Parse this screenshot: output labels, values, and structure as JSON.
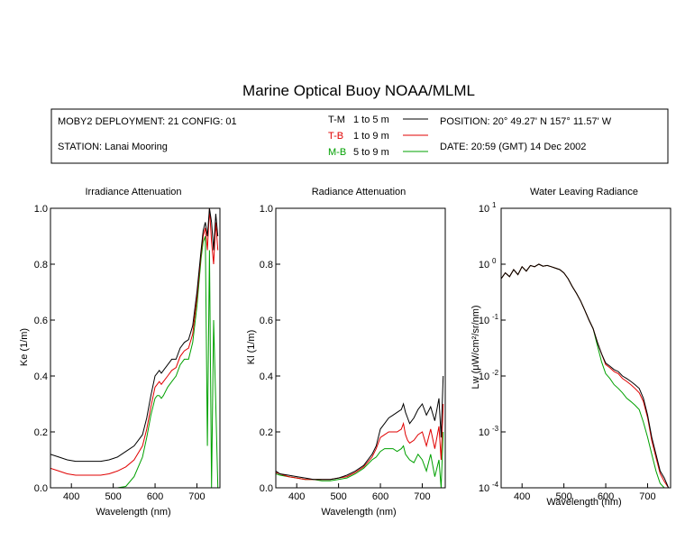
{
  "title": "Marine Optical Buoy NOAA/MLML",
  "info": {
    "deployment": "MOBY2 DEPLOYMENT: 21 CONFIG: 01",
    "station": "STATION: Lanai Mooring",
    "position": "POSITION: 20° 49.27' N   157° 11.57' W",
    "date": "DATE: 20:59 (GMT) 14 Dec 2002",
    "legend": [
      {
        "label": "T-M",
        "range": "1 to 5  m",
        "color": "#000000"
      },
      {
        "label": "T-B",
        "range": "1 to 9  m",
        "color": "#e00000"
      },
      {
        "label": "M-B",
        "range": "5 to 9  m",
        "color": "#00a000"
      }
    ]
  },
  "colors": {
    "T-M": "#000000",
    "T-B": "#e00000",
    "M-B": "#00a000"
  },
  "chart_data": [
    {
      "type": "line",
      "title": "Irradiance Attenuation",
      "xlabel": "Wavelength (nm)",
      "ylabel": "Ke  (1/m)",
      "xlim": [
        350,
        755
      ],
      "ylim": [
        0,
        1.0
      ],
      "xticks": [
        400,
        500,
        600,
        700
      ],
      "yticks": [
        0.0,
        0.2,
        0.4,
        0.6,
        0.8,
        1.0
      ],
      "ytick_labels": [
        "0.0",
        "0.2",
        "0.4",
        "0.6",
        "0.8",
        "1.0"
      ],
      "series": [
        {
          "name": "T-M",
          "x": [
            350,
            370,
            390,
            410,
            430,
            450,
            470,
            490,
            510,
            530,
            550,
            570,
            580,
            590,
            600,
            605,
            610,
            615,
            620,
            630,
            640,
            650,
            660,
            670,
            680,
            690,
            700,
            710,
            715,
            720,
            725,
            730,
            735,
            740,
            745,
            750
          ],
          "y": [
            0.12,
            0.11,
            0.1,
            0.095,
            0.095,
            0.095,
            0.095,
            0.1,
            0.11,
            0.13,
            0.15,
            0.19,
            0.25,
            0.33,
            0.4,
            0.41,
            0.42,
            0.41,
            0.42,
            0.44,
            0.46,
            0.46,
            0.5,
            0.52,
            0.53,
            0.58,
            0.7,
            0.85,
            0.92,
            0.95,
            0.9,
            1.0,
            0.95,
            0.85,
            0.98,
            0.9
          ]
        },
        {
          "name": "T-B",
          "x": [
            350,
            370,
            390,
            410,
            430,
            450,
            470,
            490,
            510,
            530,
            550,
            570,
            580,
            590,
            600,
            605,
            610,
            615,
            620,
            630,
            640,
            650,
            660,
            670,
            680,
            690,
            700,
            710,
            715,
            720,
            725,
            730,
            735,
            740,
            745,
            750
          ],
          "y": [
            0.07,
            0.06,
            0.05,
            0.045,
            0.045,
            0.045,
            0.045,
            0.05,
            0.06,
            0.075,
            0.1,
            0.15,
            0.21,
            0.29,
            0.36,
            0.37,
            0.38,
            0.37,
            0.38,
            0.4,
            0.42,
            0.43,
            0.47,
            0.49,
            0.5,
            0.55,
            0.68,
            0.84,
            0.9,
            0.93,
            0.85,
            1.0,
            0.88,
            0.8,
            0.95,
            0.85
          ]
        },
        {
          "name": "M-B",
          "x": [
            350,
            370,
            390,
            410,
            430,
            450,
            470,
            490,
            510,
            530,
            550,
            570,
            580,
            590,
            600,
            605,
            610,
            615,
            620,
            630,
            640,
            650,
            660,
            670,
            680,
            690,
            700,
            710,
            715,
            720,
            725,
            730,
            735,
            740,
            745,
            750
          ],
          "y": [
            0.0,
            0.0,
            0.0,
            0.0,
            0.0,
            0.0,
            0.0,
            0.0,
            0.0,
            0.005,
            0.04,
            0.11,
            0.18,
            0.26,
            0.32,
            0.33,
            0.33,
            0.32,
            0.33,
            0.36,
            0.38,
            0.4,
            0.44,
            0.46,
            0.46,
            0.52,
            0.65,
            0.82,
            0.88,
            0.9,
            0.15,
            0.85,
            0.0,
            0.6,
            0.3,
            0.0
          ]
        }
      ]
    },
    {
      "type": "line",
      "title": "Radiance Attenuation",
      "xlabel": "Wavelength (nm)",
      "ylabel": "Kl  (1/m)",
      "xlim": [
        350,
        755
      ],
      "ylim": [
        0,
        1.0
      ],
      "xticks": [
        400,
        500,
        600,
        700
      ],
      "yticks": [
        0.0,
        0.2,
        0.4,
        0.6,
        0.8,
        1.0
      ],
      "ytick_labels": [
        "0.0",
        "0.2",
        "0.4",
        "0.6",
        "0.8",
        "1.0"
      ],
      "series": [
        {
          "name": "T-M",
          "x": [
            350,
            360,
            380,
            400,
            420,
            440,
            460,
            480,
            500,
            520,
            540,
            560,
            580,
            590,
            600,
            610,
            620,
            630,
            640,
            650,
            655,
            660,
            665,
            670,
            680,
            690,
            700,
            710,
            720,
            730,
            740,
            745,
            750
          ],
          "y": [
            0.06,
            0.05,
            0.045,
            0.04,
            0.035,
            0.03,
            0.03,
            0.03,
            0.035,
            0.045,
            0.06,
            0.08,
            0.12,
            0.15,
            0.21,
            0.23,
            0.25,
            0.26,
            0.27,
            0.28,
            0.3,
            0.27,
            0.25,
            0.23,
            0.25,
            0.28,
            0.3,
            0.26,
            0.29,
            0.24,
            0.32,
            0.18,
            0.4
          ]
        },
        {
          "name": "T-B",
          "x": [
            350,
            360,
            380,
            400,
            420,
            440,
            460,
            480,
            500,
            520,
            540,
            560,
            580,
            590,
            600,
            610,
            620,
            630,
            640,
            650,
            655,
            660,
            665,
            670,
            680,
            690,
            700,
            710,
            720,
            730,
            740,
            745,
            750
          ],
          "y": [
            0.055,
            0.05,
            0.04,
            0.035,
            0.03,
            0.03,
            0.03,
            0.03,
            0.035,
            0.04,
            0.055,
            0.075,
            0.11,
            0.14,
            0.18,
            0.19,
            0.2,
            0.2,
            0.2,
            0.21,
            0.23,
            0.19,
            0.17,
            0.16,
            0.17,
            0.19,
            0.2,
            0.15,
            0.21,
            0.14,
            0.22,
            0.1,
            0.3
          ]
        },
        {
          "name": "M-B",
          "x": [
            350,
            360,
            380,
            400,
            420,
            440,
            460,
            480,
            500,
            520,
            540,
            560,
            580,
            590,
            600,
            610,
            620,
            630,
            640,
            650,
            655,
            660,
            665,
            670,
            680,
            690,
            700,
            710,
            720,
            730,
            740,
            745,
            750
          ],
          "y": [
            0.05,
            0.045,
            0.04,
            0.035,
            0.03,
            0.03,
            0.025,
            0.025,
            0.03,
            0.035,
            0.05,
            0.07,
            0.1,
            0.11,
            0.13,
            0.14,
            0.14,
            0.14,
            0.13,
            0.14,
            0.15,
            0.12,
            0.11,
            0.1,
            0.09,
            0.12,
            0.1,
            0.06,
            0.12,
            0.04,
            0.1,
            0.0,
            0.2
          ]
        }
      ]
    },
    {
      "type": "line",
      "title": "Water Leaving Radiance",
      "xlabel": "Wavelength (nm)",
      "ylabel": "Lw  (μW/cm²/sr/nm)",
      "yscale": "log",
      "xlim": [
        350,
        755
      ],
      "ylim": [
        0.0001,
        10
      ],
      "xticks": [
        400,
        500,
        600,
        700
      ],
      "yticks": [
        0.0001,
        0.001,
        0.01,
        0.1,
        1,
        10
      ],
      "ytick_labels": [
        {
          "base": "10",
          "exp": "-4"
        },
        {
          "base": "10",
          "exp": "-3"
        },
        {
          "base": "10",
          "exp": "-2"
        },
        {
          "base": "10",
          "exp": "-1"
        },
        {
          "base": "10",
          "exp": "0"
        },
        {
          "base": "10",
          "exp": "1"
        }
      ],
      "series": [
        {
          "name": "T-M",
          "x": [
            350,
            360,
            370,
            380,
            390,
            400,
            410,
            420,
            430,
            440,
            450,
            460,
            470,
            480,
            490,
            500,
            510,
            520,
            530,
            540,
            550,
            560,
            570,
            580,
            590,
            600,
            610,
            620,
            630,
            640,
            650,
            660,
            670,
            680,
            690,
            700,
            710,
            720,
            730,
            740,
            750
          ],
          "y": [
            0.55,
            0.7,
            0.6,
            0.8,
            0.65,
            0.9,
            0.75,
            0.95,
            0.9,
            1.0,
            0.92,
            0.95,
            0.9,
            0.85,
            0.8,
            0.7,
            0.55,
            0.4,
            0.3,
            0.22,
            0.15,
            0.1,
            0.07,
            0.04,
            0.025,
            0.017,
            0.015,
            0.013,
            0.012,
            0.01,
            0.009,
            0.008,
            0.007,
            0.006,
            0.004,
            0.002,
            0.0008,
            0.0004,
            0.0002,
            0.00015,
            0.0001
          ]
        },
        {
          "name": "T-B",
          "x": [
            350,
            360,
            370,
            380,
            390,
            400,
            410,
            420,
            430,
            440,
            450,
            460,
            470,
            480,
            490,
            500,
            510,
            520,
            530,
            540,
            550,
            560,
            570,
            580,
            590,
            600,
            610,
            620,
            630,
            640,
            650,
            660,
            670,
            680,
            690,
            700,
            710,
            720,
            730,
            740,
            750
          ],
          "y": [
            0.55,
            0.7,
            0.6,
            0.8,
            0.65,
            0.9,
            0.75,
            0.95,
            0.9,
            1.0,
            0.92,
            0.95,
            0.9,
            0.85,
            0.8,
            0.7,
            0.55,
            0.4,
            0.3,
            0.22,
            0.15,
            0.1,
            0.07,
            0.04,
            0.025,
            0.016,
            0.014,
            0.012,
            0.011,
            0.009,
            0.008,
            0.007,
            0.006,
            0.005,
            0.0035,
            0.0018,
            0.0007,
            0.00035,
            0.00018,
            0.00013,
            0.0001
          ]
        },
        {
          "name": "M-B",
          "x": [
            350,
            360,
            370,
            380,
            390,
            400,
            410,
            420,
            430,
            440,
            450,
            460,
            470,
            480,
            490,
            500,
            510,
            520,
            530,
            540,
            550,
            560,
            570,
            580,
            590,
            600,
            610,
            620,
            630,
            640,
            650,
            660,
            670,
            680,
            690,
            700,
            710,
            720,
            730,
            740,
            750
          ],
          "y": [
            0.55,
            0.7,
            0.6,
            0.8,
            0.65,
            0.9,
            0.75,
            0.95,
            0.9,
            1.0,
            0.92,
            0.95,
            0.9,
            0.85,
            0.8,
            0.7,
            0.55,
            0.4,
            0.3,
            0.22,
            0.15,
            0.1,
            0.07,
            0.035,
            0.018,
            0.011,
            0.009,
            0.007,
            0.006,
            0.005,
            0.004,
            0.0035,
            0.003,
            0.0025,
            0.0015,
            0.0008,
            0.0004,
            0.0002,
            0.00012,
            0.0001,
            0.0001
          ]
        }
      ]
    }
  ]
}
